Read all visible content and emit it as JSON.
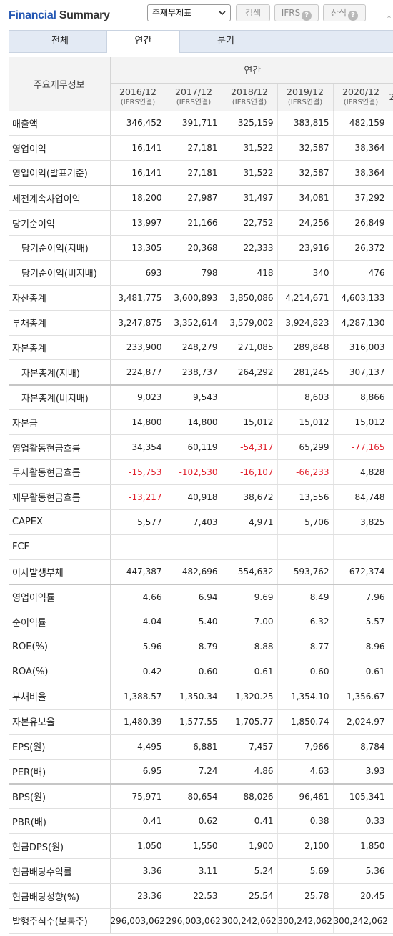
{
  "header": {
    "title_part1": "Financial",
    "title_part2": "Summary",
    "select_value": "주재무제표",
    "search_label": "검색",
    "ifrs_label": "IFRS",
    "calc_label": "산식",
    "help_glyph": "?",
    "star": "*"
  },
  "tabs": [
    "전체",
    "연간",
    "분기"
  ],
  "table": {
    "label_header": "주요재무정보",
    "group_header": "연간",
    "years": [
      "2016/12",
      "2017/12",
      "2018/12",
      "2019/12",
      "2020/12"
    ],
    "extra_year": "2",
    "year_sub": "(IFRS연결)",
    "rows": [
      {
        "label": "매출액",
        "values": [
          "346,452",
          "391,711",
          "325,159",
          "383,815",
          "482,159"
        ],
        "indent": false,
        "sep": false
      },
      {
        "label": "영업이익",
        "values": [
          "16,141",
          "27,181",
          "31,522",
          "32,587",
          "38,364"
        ],
        "indent": false,
        "sep": false
      },
      {
        "label": "영업이익(발표기준)",
        "values": [
          "16,141",
          "27,181",
          "31,522",
          "32,587",
          "38,364"
        ],
        "indent": false,
        "sep": true
      },
      {
        "label": "세전계속사업이익",
        "values": [
          "18,200",
          "27,987",
          "31,497",
          "34,081",
          "37,292"
        ],
        "indent": false,
        "sep": false
      },
      {
        "label": "당기순이익",
        "values": [
          "13,997",
          "21,166",
          "22,752",
          "24,256",
          "26,849"
        ],
        "indent": false,
        "sep": false
      },
      {
        "label": "당기순이익(지배)",
        "values": [
          "13,305",
          "20,368",
          "22,333",
          "23,916",
          "26,372"
        ],
        "indent": true,
        "sep": false
      },
      {
        "label": "당기순이익(비지배)",
        "values": [
          "693",
          "798",
          "418",
          "340",
          "476"
        ],
        "indent": true,
        "sep": false
      },
      {
        "label": "자산총계",
        "values": [
          "3,481,775",
          "3,600,893",
          "3,850,086",
          "4,214,671",
          "4,603,133"
        ],
        "indent": false,
        "sep": false
      },
      {
        "label": "부채총계",
        "values": [
          "3,247,875",
          "3,352,614",
          "3,579,002",
          "3,924,823",
          "4,287,130"
        ],
        "indent": false,
        "sep": false
      },
      {
        "label": "자본총계",
        "values": [
          "233,900",
          "248,279",
          "271,085",
          "289,848",
          "316,003"
        ],
        "indent": false,
        "sep": false
      },
      {
        "label": "자본총계(지배)",
        "values": [
          "224,877",
          "238,737",
          "264,292",
          "281,245",
          "307,137"
        ],
        "indent": true,
        "sep": true
      },
      {
        "label": "자본총계(비지배)",
        "values": [
          "9,023",
          "9,543",
          "",
          "8,603",
          "8,866"
        ],
        "indent": true,
        "sep": false
      },
      {
        "label": "자본금",
        "values": [
          "14,800",
          "14,800",
          "15,012",
          "15,012",
          "15,012"
        ],
        "indent": false,
        "sep": false
      },
      {
        "label": "영업활동현금흐름",
        "values": [
          "34,354",
          "60,119",
          "-54,317",
          "65,299",
          "-77,165"
        ],
        "indent": false,
        "sep": false
      },
      {
        "label": "투자활동현금흐름",
        "values": [
          "-15,753",
          "-102,530",
          "-16,107",
          "-66,233",
          "4,828"
        ],
        "indent": false,
        "sep": false
      },
      {
        "label": "재무활동현금흐름",
        "values": [
          "-13,217",
          "40,918",
          "38,672",
          "13,556",
          "84,748"
        ],
        "indent": false,
        "sep": false
      },
      {
        "label": "CAPEX",
        "values": [
          "5,577",
          "7,403",
          "4,971",
          "5,706",
          "3,825"
        ],
        "indent": false,
        "sep": false
      },
      {
        "label": "FCF",
        "values": [
          "",
          "",
          "",
          "",
          ""
        ],
        "indent": false,
        "sep": false
      },
      {
        "label": "이자발생부채",
        "values": [
          "447,387",
          "482,696",
          "554,632",
          "593,762",
          "672,374"
        ],
        "indent": false,
        "sep": true
      },
      {
        "label": "영업이익률",
        "values": [
          "4.66",
          "6.94",
          "9.69",
          "8.49",
          "7.96"
        ],
        "indent": false,
        "sep": false
      },
      {
        "label": "순이익률",
        "values": [
          "4.04",
          "5.40",
          "7.00",
          "6.32",
          "5.57"
        ],
        "indent": false,
        "sep": false
      },
      {
        "label": "ROE(%)",
        "values": [
          "5.96",
          "8.79",
          "8.88",
          "8.77",
          "8.96"
        ],
        "indent": false,
        "sep": false
      },
      {
        "label": "ROA(%)",
        "values": [
          "0.42",
          "0.60",
          "0.61",
          "0.60",
          "0.61"
        ],
        "indent": false,
        "sep": false
      },
      {
        "label": "부채비율",
        "values": [
          "1,388.57",
          "1,350.34",
          "1,320.25",
          "1,354.10",
          "1,356.67"
        ],
        "indent": false,
        "sep": false
      },
      {
        "label": "자본유보율",
        "values": [
          "1,480.39",
          "1,577.55",
          "1,705.77",
          "1,850.74",
          "2,024.97"
        ],
        "indent": false,
        "sep": false
      },
      {
        "label": "EPS(원)",
        "values": [
          "4,495",
          "6,881",
          "7,457",
          "7,966",
          "8,784"
        ],
        "indent": false,
        "sep": false
      },
      {
        "label": "PER(배)",
        "values": [
          "6.95",
          "7.24",
          "4.86",
          "4.63",
          "3.93"
        ],
        "indent": false,
        "sep": true
      },
      {
        "label": "BPS(원)",
        "values": [
          "75,971",
          "80,654",
          "88,026",
          "96,461",
          "105,341"
        ],
        "indent": false,
        "sep": false
      },
      {
        "label": "PBR(배)",
        "values": [
          "0.41",
          "0.62",
          "0.41",
          "0.38",
          "0.33"
        ],
        "indent": false,
        "sep": false
      },
      {
        "label": "현금DPS(원)",
        "values": [
          "1,050",
          "1,550",
          "1,900",
          "2,100",
          "1,850"
        ],
        "indent": false,
        "sep": false
      },
      {
        "label": "현금배당수익률",
        "values": [
          "3.36",
          "3.11",
          "5.24",
          "5.69",
          "5.36"
        ],
        "indent": false,
        "sep": false
      },
      {
        "label": "현금배당성향(%)",
        "values": [
          "23.36",
          "22.53",
          "25.54",
          "25.78",
          "20.45"
        ],
        "indent": false,
        "sep": false
      },
      {
        "label": "발행주식수(보통주)",
        "values": [
          "296,003,062",
          "296,003,062",
          "300,242,062",
          "300,242,062",
          "300,242,062"
        ],
        "indent": false,
        "sep": false
      }
    ]
  },
  "colors": {
    "brand_blue": "#2457b3",
    "negative_red": "#e0202c",
    "tab_bg": "#e3eaf4",
    "highlight_border": "#f0ce63"
  }
}
